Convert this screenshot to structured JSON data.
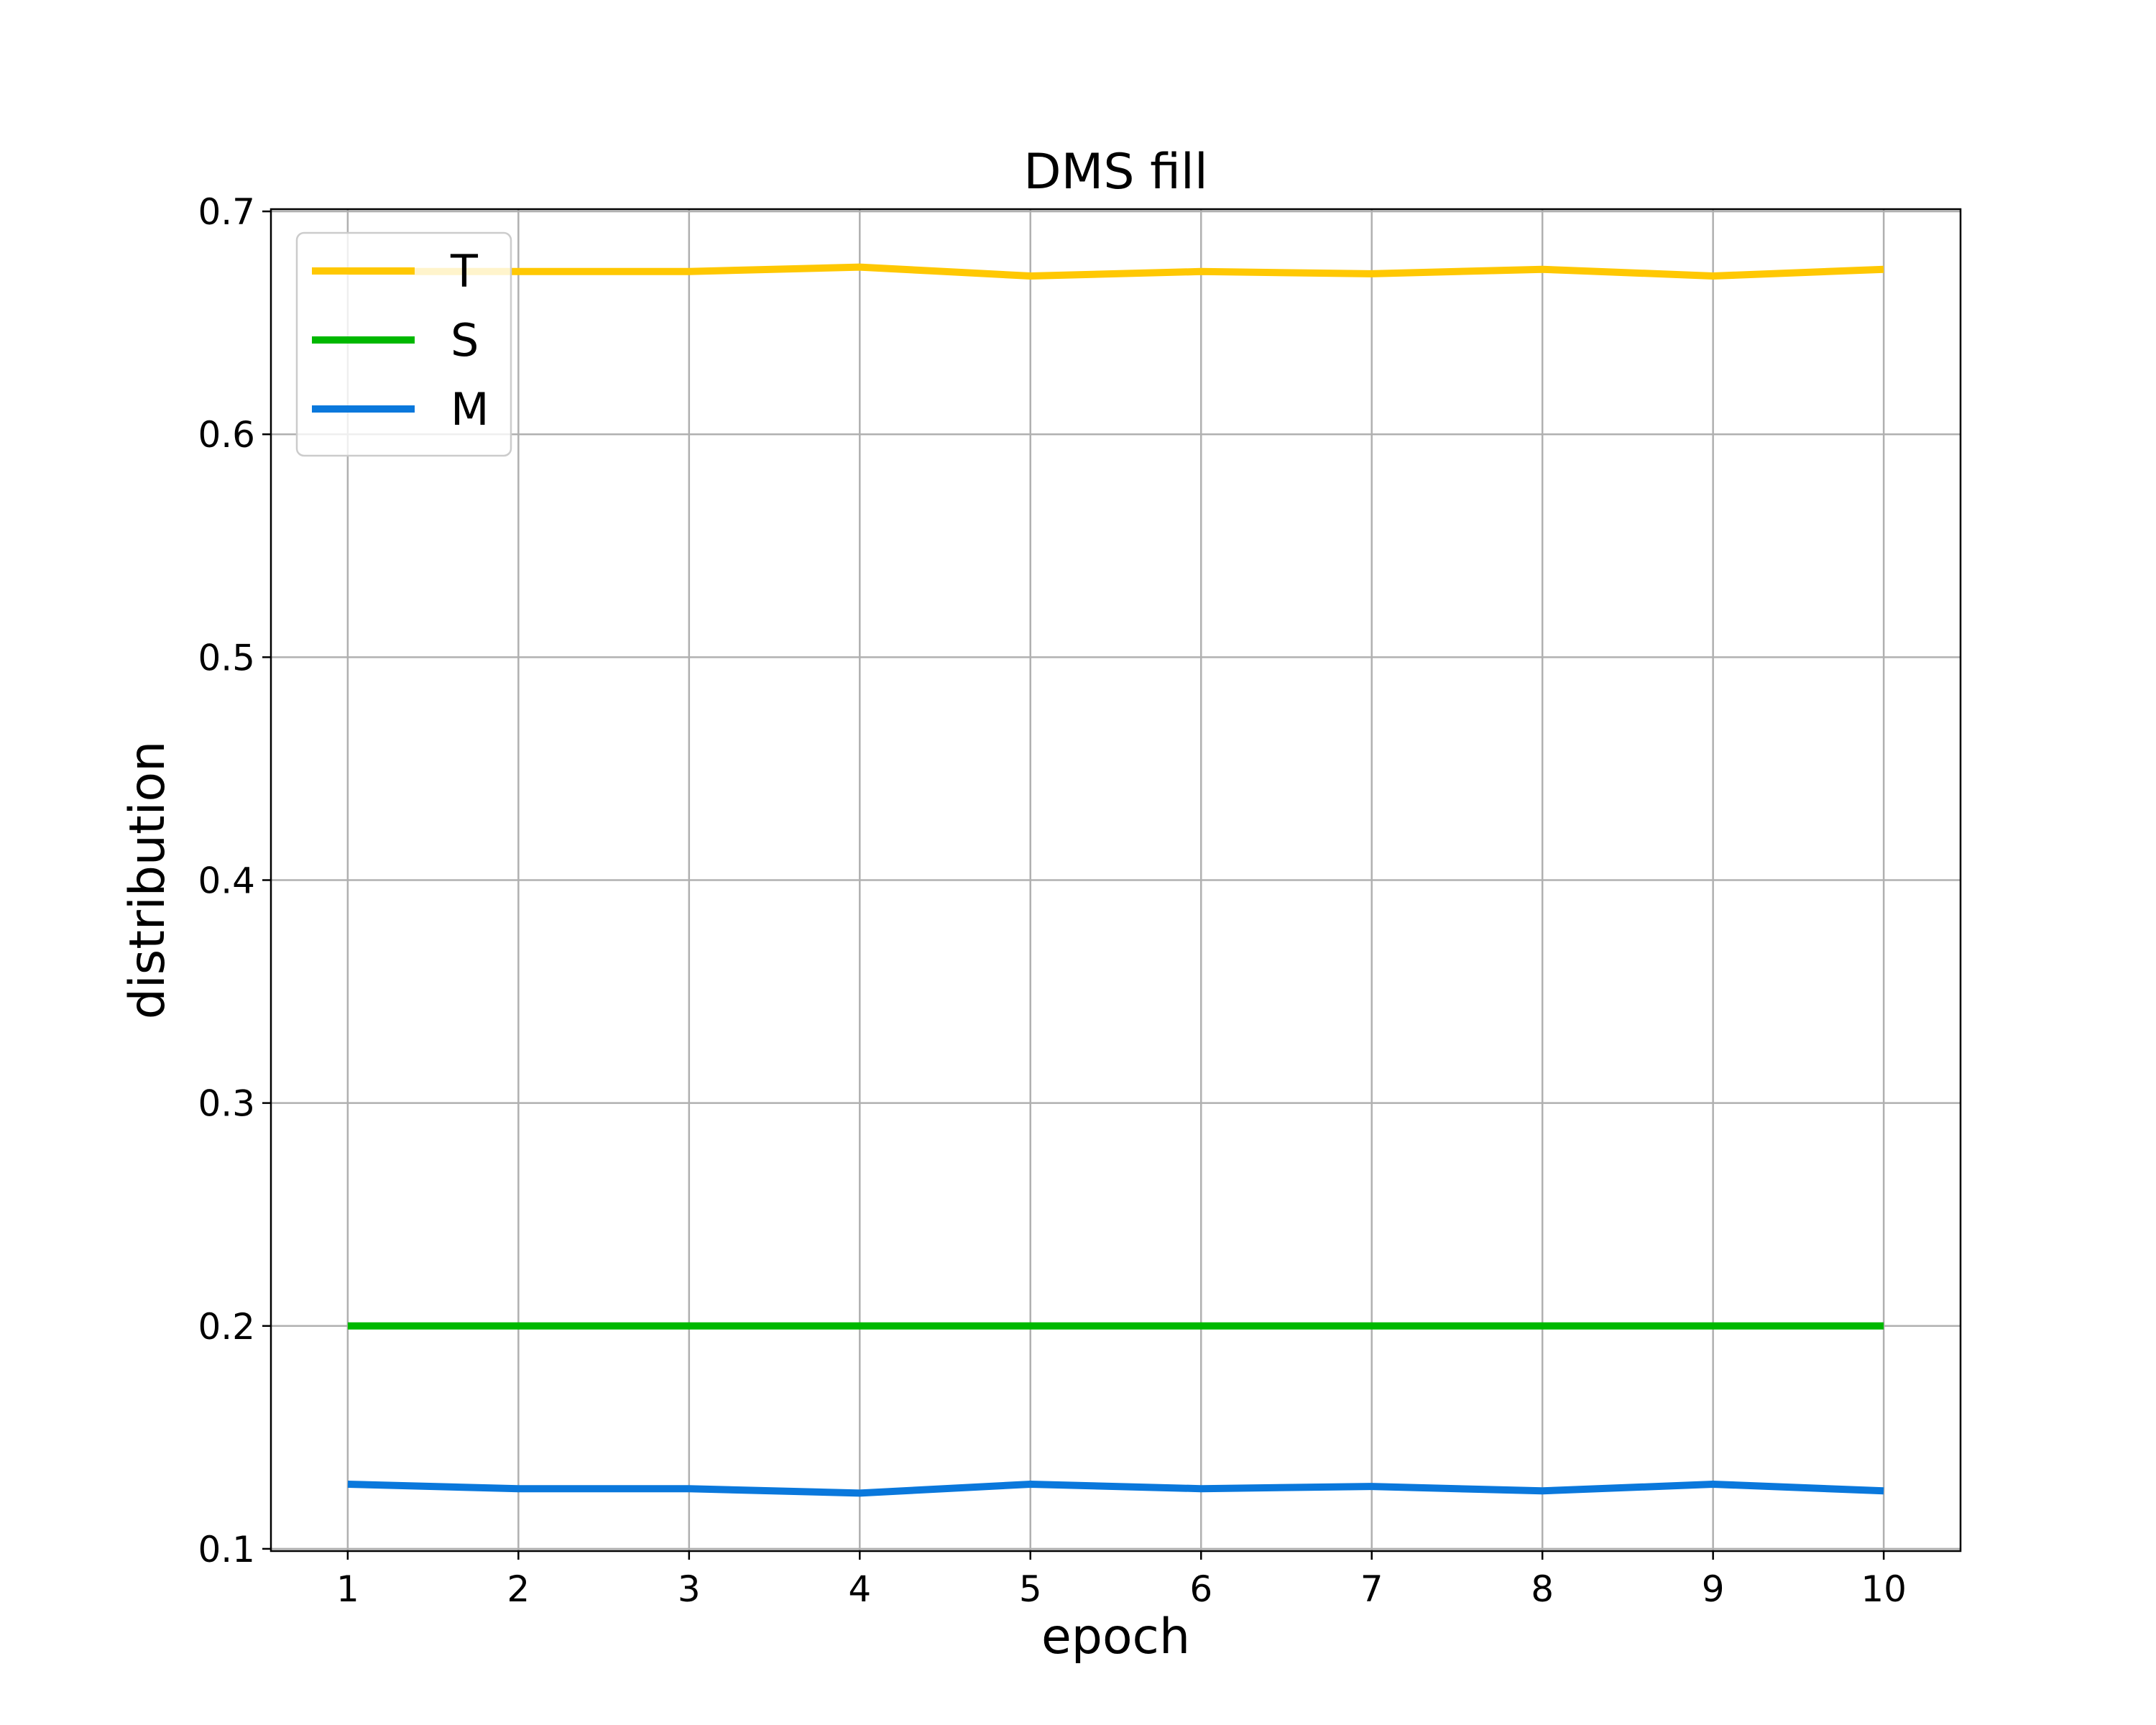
{
  "chart_data": {
    "type": "line",
    "title": "DMS fill",
    "xlabel": "epoch",
    "ylabel": "distribution",
    "x": [
      1,
      2,
      3,
      4,
      5,
      6,
      7,
      8,
      9,
      10
    ],
    "xlim": [
      0.55,
      10.45
    ],
    "ylim": [
      0.099,
      0.701
    ],
    "xticks": [
      "1",
      "2",
      "3",
      "4",
      "5",
      "6",
      "7",
      "8",
      "9",
      "10"
    ],
    "yticks": [
      "0.1",
      "0.2",
      "0.3",
      "0.4",
      "0.5",
      "0.6",
      "0.7"
    ],
    "ytick_values": [
      0.1,
      0.2,
      0.3,
      0.4,
      0.5,
      0.6,
      0.7
    ],
    "grid": true,
    "legend_position": "top-left",
    "series": [
      {
        "name": "T",
        "color": "#ffc802",
        "values": [
          0.673,
          0.673,
          0.673,
          0.675,
          0.671,
          0.673,
          0.672,
          0.674,
          0.671,
          0.674
        ]
      },
      {
        "name": "S",
        "color": "#00b800",
        "values": [
          0.2,
          0.2,
          0.2,
          0.2,
          0.2,
          0.2,
          0.2,
          0.2,
          0.2,
          0.2
        ]
      },
      {
        "name": "M",
        "color": "#0a78dc",
        "values": [
          0.129,
          0.127,
          0.127,
          0.125,
          0.129,
          0.127,
          0.128,
          0.126,
          0.129,
          0.126
        ]
      }
    ]
  }
}
